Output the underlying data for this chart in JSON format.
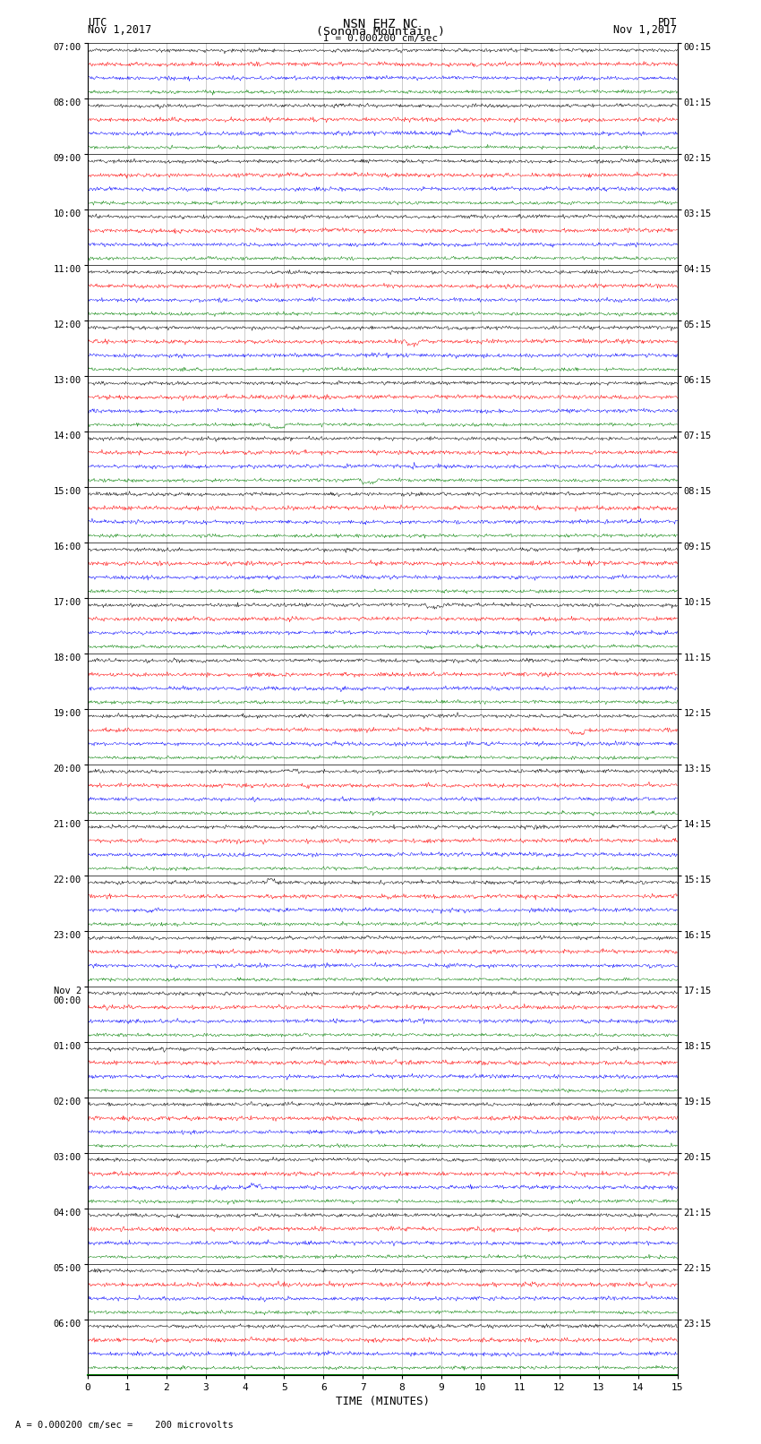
{
  "title_line1": "NSN EHZ NC",
  "title_line2": "(Sonona Mountain )",
  "title_line3": "I = 0.000200 cm/sec",
  "left_label1": "UTC",
  "left_label2": "Nov 1,2017",
  "right_label1": "PDT",
  "right_label2": "Nov 1,2017",
  "xlabel": "TIME (MINUTES)",
  "scale_label": "= 0.000200 cm/sec =    200 microvolts",
  "utc_labels": [
    "07:00",
    "08:00",
    "09:00",
    "10:00",
    "11:00",
    "12:00",
    "13:00",
    "14:00",
    "15:00",
    "16:00",
    "17:00",
    "18:00",
    "19:00",
    "20:00",
    "21:00",
    "22:00",
    "23:00",
    "Nov 2\n00:00",
    "01:00",
    "02:00",
    "03:00",
    "04:00",
    "05:00",
    "06:00"
  ],
  "pdt_labels": [
    "00:15",
    "01:15",
    "02:15",
    "03:15",
    "04:15",
    "05:15",
    "06:15",
    "07:15",
    "08:15",
    "09:15",
    "10:15",
    "11:15",
    "12:15",
    "13:15",
    "14:15",
    "15:15",
    "16:15",
    "17:15",
    "18:15",
    "19:15",
    "20:15",
    "21:15",
    "22:15",
    "23:15"
  ],
  "n_hour_groups": 24,
  "traces_per_group": 4,
  "colors": [
    "black",
    "red",
    "blue",
    "green"
  ],
  "noise_amp": [
    0.06,
    0.07,
    0.065,
    0.055
  ],
  "background": "white",
  "grid_color": "#888888",
  "x_min": 0,
  "x_max": 15,
  "x_ticks": [
    0,
    1,
    2,
    3,
    4,
    5,
    6,
    7,
    8,
    9,
    10,
    11,
    12,
    13,
    14,
    15
  ],
  "fig_width": 8.5,
  "fig_height": 16.13,
  "dpi": 100
}
